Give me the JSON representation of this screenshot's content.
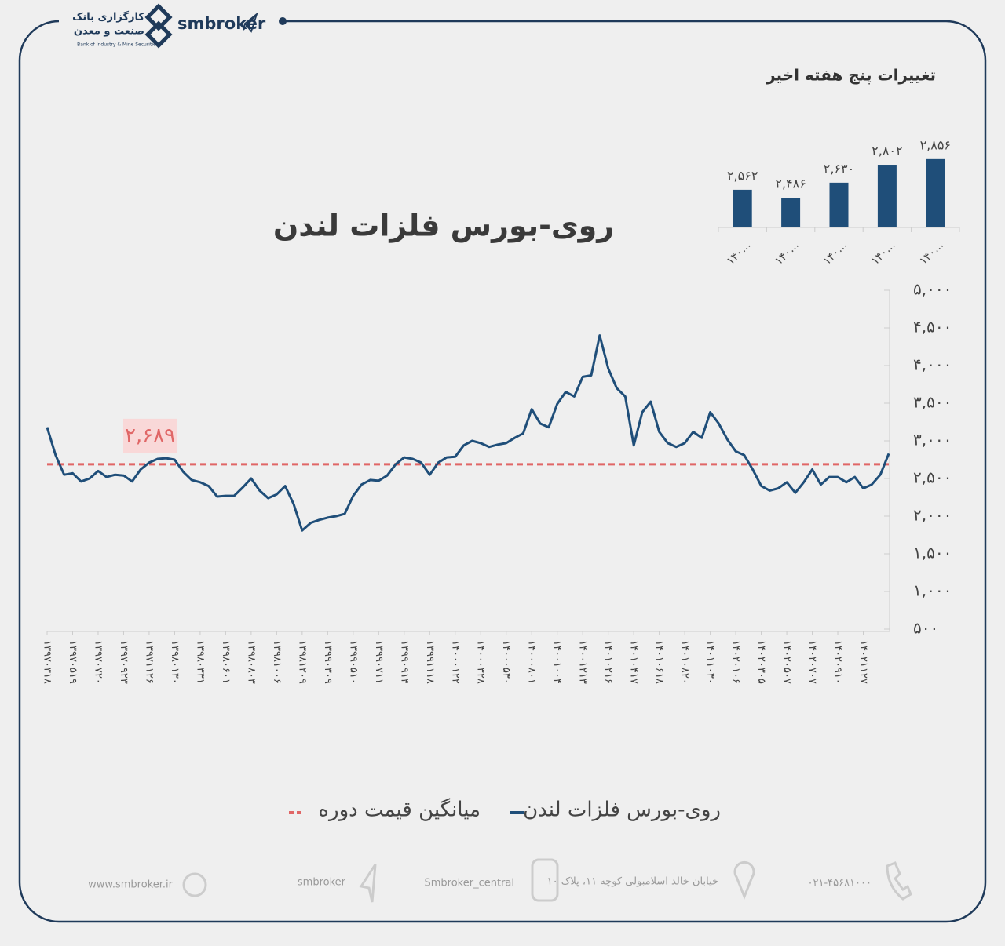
{
  "header": {
    "brand": "smbroker",
    "bank_name": "کارگزاری بانک",
    "bank_name_2": "صنعت و معدن",
    "bank_subtitle": "Bank of Industry & Mine Securities"
  },
  "chart_data": [
    {
      "type": "line",
      "title": "روی-بورس فلزات لندن",
      "categories": [
        "۱۳۹۷۰۳۱۸",
        null,
        null,
        "۱۳۹۷۰۵۱۹",
        null,
        null,
        "۱۳۹۷۰۷۲۰",
        null,
        null,
        "۱۳۹۷۰۹۲۳",
        null,
        null,
        "۱۳۹۷۱۱۲۶",
        null,
        null,
        "۱۳۹۸۰۱۳۰",
        null,
        null,
        "۱۳۹۸۰۳۳۱",
        null,
        null,
        "۱۳۹۸۰۶۰۱",
        null,
        null,
        "۱۳۹۸۰۸۰۳",
        null,
        null,
        "۱۳۹۸۱۰۰۶",
        null,
        null,
        "۱۳۹۸۱۲۰۹",
        null,
        null,
        "۱۳۹۹۰۳۰۹",
        null,
        null,
        "۱۳۹۹۰۵۱۰",
        null,
        null,
        "۱۳۹۹۰۷۱۱",
        null,
        null,
        "۱۳۹۹۰۹۱۴",
        null,
        null,
        "۱۳۹۹۱۱۱۸",
        null,
        null,
        "۱۴۰۰۰۱۲۲",
        null,
        null,
        "۱۴۰۰۰۳۲۸",
        null,
        null,
        "۱۴۰۰۰۵۳۰",
        null,
        null,
        "۱۴۰۰۰۸۰۱",
        null,
        null,
        "۱۴۰۰۱۰۰۴",
        null,
        null,
        "۱۴۰۰۱۲۱۳",
        null,
        null,
        "۱۴۰۱۰۲۱۶",
        null,
        null,
        "۱۴۰۱۰۴۱۷",
        null,
        null,
        "۱۴۰۱۰۶۱۸",
        null,
        null,
        "۱۴۰۱۰۸۲۰",
        null,
        null,
        "۱۴۰۱۱۰۳۰",
        null,
        null,
        "۱۴۰۲۰۱۰۶",
        null,
        null,
        "۱۴۰۲۰۳۰۵",
        null,
        null,
        "۱۴۰۲۰۵۰۷",
        null,
        null,
        "۱۴۰۲۰۷۰۷",
        null,
        null,
        "۱۴۰۲۰۹۱۰",
        null,
        null,
        "۱۴۰۲۱۱۲۷",
        null,
        null,
        null
      ],
      "series": [
        {
          "name": "روی-بورس فلزات لندن",
          "color": "#1f4e79",
          "values": [
            3180,
            2810,
            2550,
            2570,
            2460,
            2500,
            2600,
            2520,
            2550,
            2540,
            2460,
            2620,
            2710,
            2760,
            2770,
            2750,
            2590,
            2480,
            2450,
            2400,
            2260,
            2270,
            2270,
            2380,
            2500,
            2340,
            2240,
            2290,
            2400,
            2160,
            1810,
            1910,
            1950,
            1980,
            2000,
            2030,
            2270,
            2420,
            2480,
            2470,
            2540,
            2690,
            2780,
            2760,
            2710,
            2550,
            2710,
            2780,
            2790,
            2940,
            3000,
            2970,
            2920,
            2950,
            2970,
            3040,
            3100,
            3420,
            3230,
            3180,
            3490,
            3650,
            3590,
            3850,
            3870,
            4400,
            3960,
            3700,
            3590,
            2940,
            3380,
            3520,
            3120,
            2970,
            2920,
            2970,
            3120,
            3040,
            3380,
            3230,
            3020,
            2860,
            2810,
            2620,
            2400,
            2340,
            2370,
            2450,
            2310,
            2450,
            2620,
            2420,
            2520,
            2520,
            2450,
            2520,
            2370,
            2420,
            2550,
            2830
          ]
        }
      ],
      "reference_line": {
        "name": "میانگین قیمت دوره",
        "value": 2689,
        "value_label": "۲,۶۸۹",
        "color": "#e06666"
      },
      "ylim": [
        500,
        5000
      ],
      "yticks": [
        {
          "value": 500,
          "label": "۵۰۰"
        },
        {
          "value": 1000,
          "label": "۱,۰۰۰"
        },
        {
          "value": 1500,
          "label": "۱,۵۰۰"
        },
        {
          "value": 2000,
          "label": "۲,۰۰۰"
        },
        {
          "value": 2500,
          "label": "۲,۵۰۰"
        },
        {
          "value": 3000,
          "label": "۳,۰۰۰"
        },
        {
          "value": 3500,
          "label": "۳,۵۰۰"
        },
        {
          "value": 4000,
          "label": "۴,۰۰۰"
        },
        {
          "value": 4500,
          "label": "۴,۵۰۰"
        },
        {
          "value": 5000,
          "label": "۵,۰۰۰"
        }
      ]
    },
    {
      "type": "bar",
      "title": "تغییرات پنج هفته اخیر",
      "color": "#1f4e79",
      "categories": [
        "۱۴۰...",
        "۱۴۰...",
        "۱۴۰...",
        "۱۴۰...",
        "۱۴۰..."
      ],
      "values": [
        2562,
        2486,
        2630,
        2802,
        2856
      ],
      "value_labels": [
        "۲,۵۶۲",
        "۲,۴۸۶",
        "۲,۶۳۰",
        "۲,۸۰۲",
        "۲,۸۵۶"
      ],
      "ylim": [
        2200,
        2900
      ]
    }
  ],
  "footer": {
    "website": "www.smbroker.ir",
    "telegram": "smbroker",
    "instagram": "Smbroker_central",
    "address": "خیابان خالد اسلامبولی کوچه ۱۱، پلاک ۱۰",
    "phone": "۰۲۱-۴۵۶۸۱۰۰۰"
  }
}
